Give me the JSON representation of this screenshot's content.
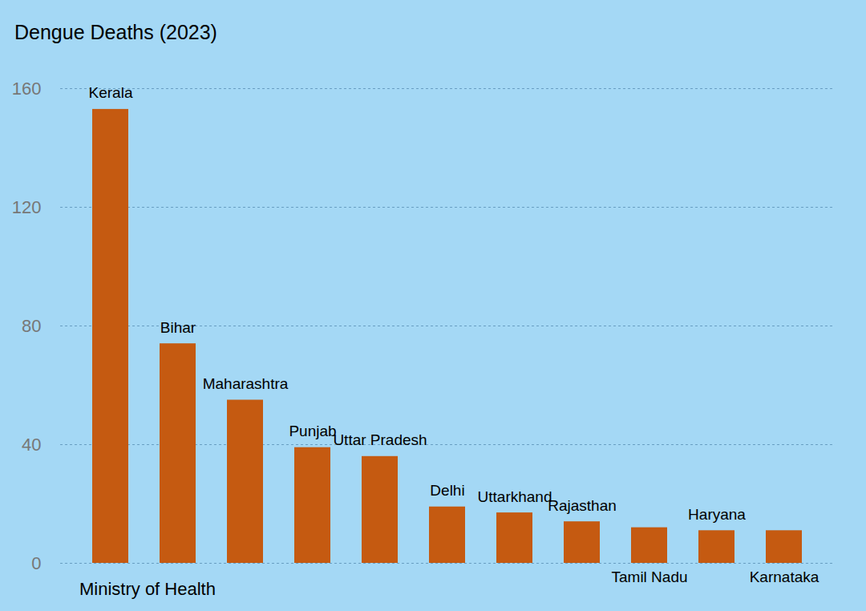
{
  "chart_data": {
    "type": "bar",
    "title": "Dengue Deaths (2023)",
    "caption": "Ministry of Health",
    "categories": [
      "Kerala",
      "Bihar",
      "Maharashtra",
      "Punjab",
      "Uttar Pradesh",
      "Delhi",
      "Uttarkhand",
      "Rajasthan",
      "Tamil Nadu",
      "Haryana",
      "Karnataka"
    ],
    "values": [
      153,
      74,
      55,
      39,
      36,
      19,
      17,
      14,
      12,
      11,
      11
    ],
    "color": "#c55a11",
    "ylim": [
      0,
      160
    ],
    "yticks": [
      0,
      40,
      80,
      120,
      160
    ],
    "grid": true,
    "data_labels": false,
    "tick_labels": "y"
  }
}
